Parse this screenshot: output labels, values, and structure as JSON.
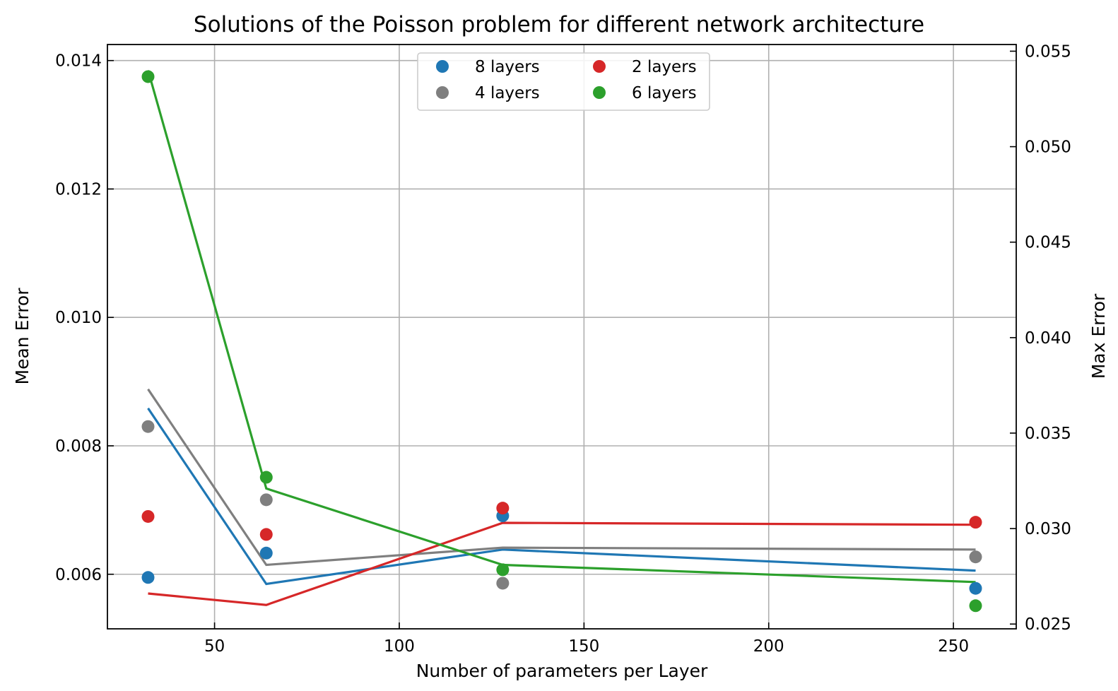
{
  "chart_data": {
    "type": "scatter",
    "title": "Solutions of the Poisson problem for different network architecture",
    "xlabel": "Number of parameters per Layer",
    "ylabel": "Mean Error",
    "y2label": "Max Error",
    "x": [
      32,
      64,
      128,
      256
    ],
    "xlim": [
      21,
      267
    ],
    "ylim": [
      0.00515,
      0.01425
    ],
    "y2lim": [
      0.02475,
      0.05535
    ],
    "xticks": [
      50,
      100,
      150,
      200,
      250
    ],
    "xtick_labels": [
      "50",
      "100",
      "150",
      "200",
      "250"
    ],
    "yticks": [
      0.006,
      0.008,
      0.01,
      0.012,
      0.014
    ],
    "ytick_labels": [
      "0.006",
      "0.008",
      "0.010",
      "0.012",
      "0.014"
    ],
    "y2ticks": [
      0.025,
      0.03,
      0.035,
      0.04,
      0.045,
      0.05,
      0.055
    ],
    "y2tick_labels": [
      "0.025",
      "0.030",
      "0.035",
      "0.040",
      "0.045",
      "0.050",
      "0.055"
    ],
    "grid": true,
    "legend_position": "top-center",
    "legend_columns": 2,
    "series": [
      {
        "name": "8 layers",
        "color": "#1f77b4",
        "mean_error": [
          0.00595,
          0.00633,
          0.00691,
          0.00578
        ],
        "max_error": [
          0.0363,
          0.0271,
          0.0289,
          0.0278
        ]
      },
      {
        "name": "4 layers",
        "color": "#7f7f7f",
        "mean_error": [
          0.0083,
          0.00716,
          0.00586,
          0.00627
        ],
        "max_error": [
          0.0373,
          0.0281,
          0.029,
          0.0289
        ]
      },
      {
        "name": "2 layers",
        "color": "#d62728",
        "mean_error": [
          0.0069,
          0.00662,
          0.00703,
          0.00681
        ],
        "max_error": [
          0.0266,
          0.026,
          0.0303,
          0.0302
        ]
      },
      {
        "name": "6 layers",
        "color": "#2ca02c",
        "mean_error": [
          0.01375,
          0.00751,
          0.00607,
          0.00551
        ],
        "max_error": [
          0.054,
          0.0321,
          0.0281,
          0.0272
        ]
      }
    ]
  }
}
